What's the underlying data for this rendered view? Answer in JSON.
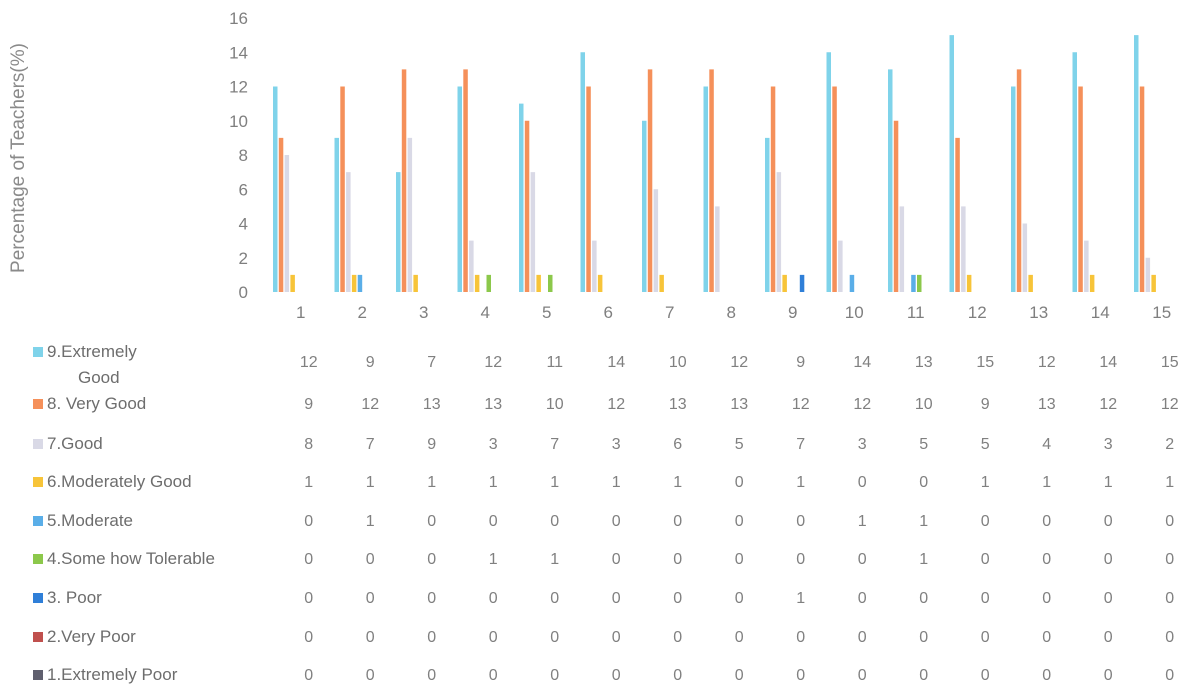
{
  "chart_data": {
    "type": "bar",
    "ylabel": "Percentage of Teachers(%)",
    "xlabel": "",
    "ylim": [
      0,
      16
    ],
    "yticks": [
      "0",
      "2",
      "4",
      "6",
      "8",
      "10",
      "12",
      "14",
      "16"
    ],
    "categories": [
      "1",
      "2",
      "3",
      "4",
      "5",
      "6",
      "7",
      "8",
      "9",
      "10",
      "11",
      "12",
      "13",
      "14",
      "15"
    ],
    "grid": false,
    "legend_placement": "bottom data table",
    "series": [
      {
        "name": "9.Extremely Good",
        "color": "#7fd3ea",
        "values": [
          12,
          9,
          7,
          12,
          11,
          14,
          10,
          12,
          9,
          14,
          13,
          15,
          12,
          14,
          15
        ]
      },
      {
        "name": "8. Very Good",
        "color": "#f5905a",
        "values": [
          9,
          12,
          13,
          13,
          10,
          12,
          13,
          13,
          12,
          12,
          10,
          9,
          13,
          12,
          12
        ]
      },
      {
        "name": "7.Good",
        "color": "#d9d9e6",
        "values": [
          8,
          7,
          9,
          3,
          7,
          3,
          6,
          5,
          7,
          3,
          5,
          5,
          4,
          3,
          2
        ]
      },
      {
        "name": "6.Moderately Good",
        "color": "#f7c439",
        "values": [
          1,
          1,
          1,
          1,
          1,
          1,
          1,
          0,
          1,
          0,
          0,
          1,
          1,
          1,
          1
        ]
      },
      {
        "name": "5.Moderate",
        "color": "#5aaee8",
        "values": [
          0,
          1,
          0,
          0,
          0,
          0,
          0,
          0,
          0,
          1,
          1,
          0,
          0,
          0,
          0
        ]
      },
      {
        "name": "4.Some how Tolerable",
        "color": "#8cc84b",
        "values": [
          0,
          0,
          0,
          1,
          1,
          0,
          0,
          0,
          0,
          0,
          1,
          0,
          0,
          0,
          0
        ]
      },
      {
        "name": "3. Poor",
        "color": "#2f7fd8",
        "values": [
          0,
          0,
          0,
          0,
          0,
          0,
          0,
          0,
          1,
          0,
          0,
          0,
          0,
          0,
          0
        ]
      },
      {
        "name": "2.Very Poor",
        "color": "#c0504d",
        "values": [
          0,
          0,
          0,
          0,
          0,
          0,
          0,
          0,
          0,
          0,
          0,
          0,
          0,
          0,
          0
        ]
      },
      {
        "name": "1.Extremely Poor",
        "color": "#5f5f6e",
        "values": [
          0,
          0,
          0,
          0,
          0,
          0,
          0,
          0,
          0,
          0,
          0,
          0,
          0,
          0,
          0
        ]
      }
    ]
  }
}
